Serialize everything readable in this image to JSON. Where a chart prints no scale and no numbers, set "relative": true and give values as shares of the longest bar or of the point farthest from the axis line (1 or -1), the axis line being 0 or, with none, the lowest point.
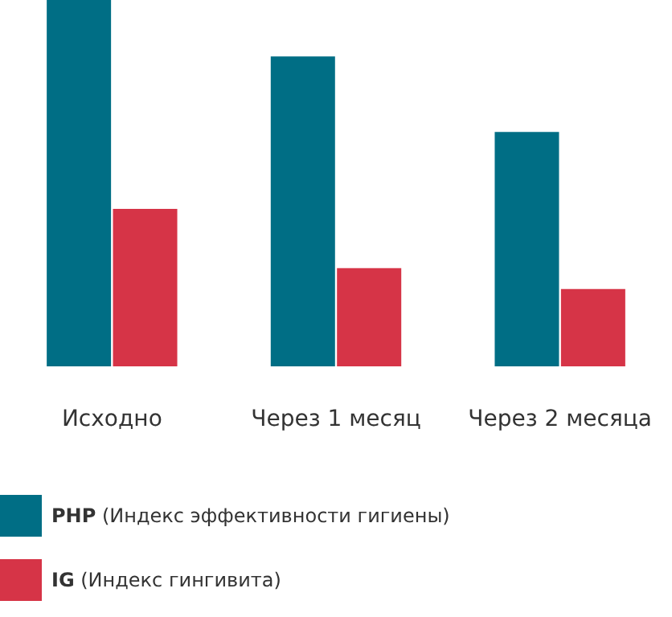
{
  "chart_data": {
    "type": "bar",
    "relative": true,
    "categories": [
      "Исходно",
      "Через 1 месяц",
      "Через 2 месяца"
    ],
    "series": [
      {
        "name": "PHP (Индекс эффективности гигиены)",
        "color": "#006e85",
        "values": [
          1,
          0.846,
          0.64
        ]
      },
      {
        "name": "IG (Индекс гингивита)",
        "color": "#d63447",
        "values": [
          0.43,
          0.268,
          0.211
        ]
      }
    ],
    "legend": "bottom left"
  }
}
